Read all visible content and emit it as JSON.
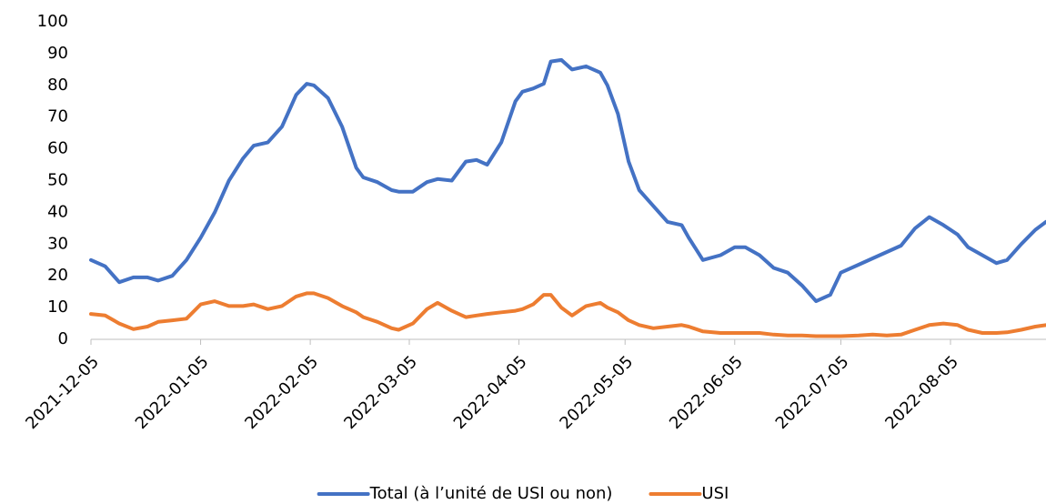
{
  "chart_data": {
    "type": "line",
    "x": [
      "2021-12-05",
      "2021-12-09",
      "2021-12-13",
      "2021-12-17",
      "2021-12-21",
      "2021-12-24",
      "2021-12-28",
      "2022-01-01",
      "2022-01-05",
      "2022-01-09",
      "2022-01-13",
      "2022-01-17",
      "2022-01-20",
      "2022-01-24",
      "2022-01-28",
      "2022-02-01",
      "2022-02-04",
      "2022-02-06",
      "2022-02-10",
      "2022-02-14",
      "2022-02-18",
      "2022-02-20",
      "2022-02-24",
      "2022-02-28",
      "2022-03-02",
      "2022-03-06",
      "2022-03-10",
      "2022-03-13",
      "2022-03-17",
      "2022-03-21",
      "2022-03-24",
      "2022-03-27",
      "2022-03-31",
      "2022-04-04",
      "2022-04-06",
      "2022-04-09",
      "2022-04-12",
      "2022-04-14",
      "2022-04-17",
      "2022-04-20",
      "2022-04-24",
      "2022-04-28",
      "2022-04-30",
      "2022-05-03",
      "2022-05-06",
      "2022-05-09",
      "2022-05-13",
      "2022-05-17",
      "2022-05-21",
      "2022-05-23",
      "2022-05-27",
      "2022-06-01",
      "2022-06-05",
      "2022-06-08",
      "2022-06-12",
      "2022-06-16",
      "2022-06-20",
      "2022-06-24",
      "2022-06-28",
      "2022-07-02",
      "2022-07-05",
      "2022-07-10",
      "2022-07-14",
      "2022-07-18",
      "2022-07-22",
      "2022-07-26",
      "2022-07-30",
      "2022-08-03",
      "2022-08-07",
      "2022-08-10",
      "2022-08-14",
      "2022-08-18",
      "2022-08-21",
      "2022-08-25",
      "2022-08-29",
      "2022-09-01"
    ],
    "series": [
      {
        "name": "Total (à l’unité de USI ou non)",
        "color": "#4472c4",
        "values": [
          25,
          23,
          18,
          19.5,
          19.5,
          18.5,
          20,
          25,
          32,
          40,
          50,
          57,
          61,
          62,
          67,
          77,
          80.5,
          80,
          76,
          67,
          54,
          51,
          49.5,
          47,
          46.5,
          46.5,
          49.5,
          50.5,
          50,
          56,
          56.5,
          55,
          62,
          75,
          78,
          79,
          80.5,
          87.5,
          88,
          85,
          86,
          84,
          80,
          71,
          56,
          47,
          42,
          37,
          36,
          32,
          25,
          26.5,
          29,
          29,
          26.5,
          22.5,
          21,
          17,
          12,
          14,
          21,
          23.5,
          25.5,
          27.5,
          29.5,
          35,
          38.5,
          36,
          33,
          29,
          26.5,
          24,
          25,
          30,
          34.5,
          37
        ]
      },
      {
        "name": "USI",
        "color": "#ed7d31",
        "values": [
          8,
          7.5,
          5,
          3.2,
          4,
          5.5,
          6,
          6.5,
          11,
          12,
          10.5,
          10.5,
          11,
          9.5,
          10.5,
          13.5,
          14.5,
          14.5,
          13,
          10.5,
          8.5,
          7,
          5.5,
          3.5,
          3,
          5,
          9.5,
          11.5,
          9,
          7,
          7.5,
          8,
          8.5,
          9,
          9.5,
          11,
          14,
          14,
          10,
          7.5,
          10.5,
          11.5,
          10,
          8.5,
          6,
          4.5,
          3.5,
          4,
          4.5,
          4,
          2.5,
          2,
          2,
          2,
          2,
          1.5,
          1.2,
          1.2,
          1,
          1,
          1,
          1.2,
          1.5,
          1.2,
          1.5,
          3,
          4.5,
          5,
          4.5,
          3,
          2,
          2,
          2.2,
          3,
          4,
          4.5
        ]
      }
    ],
    "xlim": [
      "2021-12-05",
      "2022-09-01"
    ],
    "xticks": [
      "2021-12-05",
      "2022-01-05",
      "2022-02-05",
      "2022-03-05",
      "2022-04-05",
      "2022-05-05",
      "2022-06-05",
      "2022-07-05",
      "2022-08-05"
    ],
    "ylim": [
      0,
      100
    ],
    "yticks": [
      0,
      10,
      20,
      30,
      40,
      50,
      60,
      70,
      80,
      90,
      100
    ],
    "grid": false,
    "legend": "bottom"
  }
}
